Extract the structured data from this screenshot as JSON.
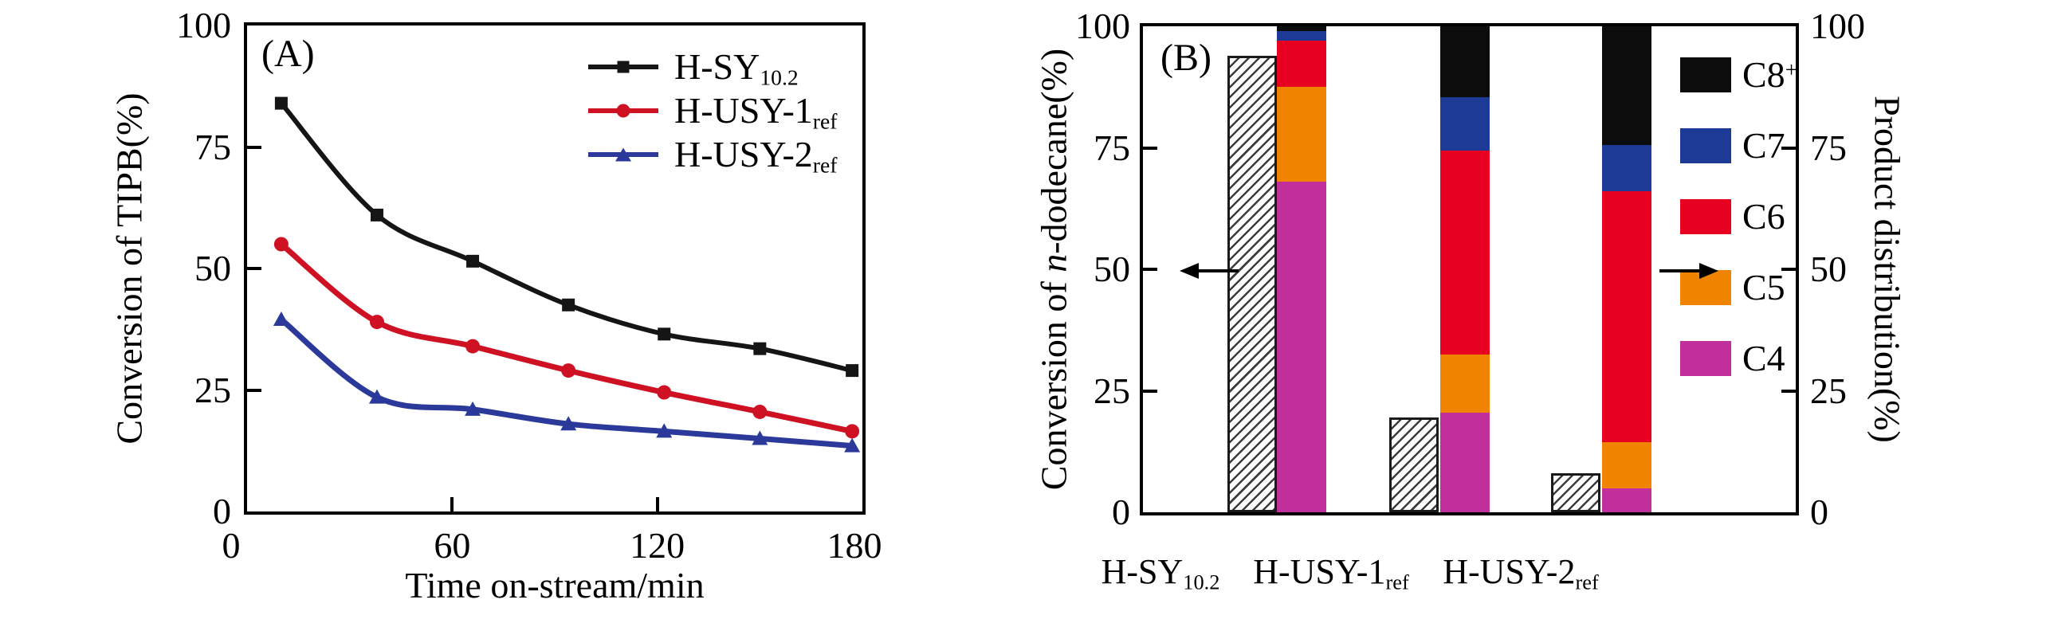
{
  "chart_data": [
    {
      "id": "A",
      "type": "line",
      "panel_tag": "(A)",
      "xlabel": "Time on-stream/min",
      "ylabel": "Conversion of TIPB(%)",
      "xlim": [
        0,
        180
      ],
      "ylim": [
        0,
        100
      ],
      "x_ticks": [
        0,
        60,
        120,
        180
      ],
      "y_ticks": [
        0,
        25,
        50,
        75,
        100
      ],
      "grid": false,
      "legend_position": "top-right-inside",
      "series": [
        {
          "name": "H-SY",
          "sub": "10.2",
          "color": "#151515",
          "marker": "square",
          "x": [
            10,
            38,
            66,
            94,
            122,
            150,
            177
          ],
          "y": [
            84,
            61,
            51.5,
            42.5,
            36.5,
            33.5,
            29
          ]
        },
        {
          "name": "H-USY-1",
          "sub": "ref",
          "color": "#cf1223",
          "marker": "circle",
          "x": [
            10,
            38,
            66,
            94,
            122,
            150,
            177
          ],
          "y": [
            55,
            39,
            34,
            29,
            24.5,
            20.5,
            16.5
          ]
        },
        {
          "name": "H-USY-2",
          "sub": "ref",
          "color": "#2b3a9a",
          "marker": "triangle",
          "x": [
            10,
            38,
            66,
            94,
            122,
            150,
            177
          ],
          "y": [
            39.5,
            23.5,
            21,
            18,
            16.5,
            15,
            13.5
          ]
        }
      ]
    },
    {
      "id": "B",
      "type": "bar",
      "panel_tag": "(B)",
      "ylabel_left_parts": [
        [
          "Conversion of ",
          false
        ],
        [
          "n",
          true
        ],
        [
          "-dodecane(%)",
          false
        ]
      ],
      "ylabel_right": "Product distribution(%)",
      "ylim": [
        0,
        100
      ],
      "y_ticks": [
        0,
        25,
        50,
        75,
        100
      ],
      "categories": [
        {
          "main": "H-SY",
          "sub": "10.2"
        },
        {
          "main": "H-USY-1",
          "sub": "ref"
        },
        {
          "main": "H-USY-2",
          "sub": "ref"
        }
      ],
      "conversion_bars": {
        "axis": "left",
        "hatch": "diagonal",
        "values": [
          94,
          19.5,
          8
        ]
      },
      "stack_series": [
        {
          "name": "C4",
          "color": "#c02f9b",
          "values": [
            68,
            20.5,
            5
          ]
        },
        {
          "name": "C5",
          "color": "#f08300",
          "values": [
            19.5,
            12,
            9.5
          ]
        },
        {
          "name": "C6",
          "color": "#e80021",
          "values": [
            9.5,
            42,
            51.5
          ]
        },
        {
          "name": "C7",
          "color": "#1c3a96",
          "values": [
            2,
            11,
            9.5
          ]
        },
        {
          "name": "C8+",
          "color": "#0c0c0c",
          "values": [
            1,
            14.5,
            24.5
          ]
        }
      ],
      "legend": [
        {
          "label": "C8",
          "sup": "+",
          "color": "#0c0c0c"
        },
        {
          "label": "C7",
          "sup": "",
          "color": "#1c3a96"
        },
        {
          "label": "C6",
          "sup": "",
          "color": "#e80021"
        },
        {
          "label": "C5",
          "sup": "",
          "color": "#f08300"
        },
        {
          "label": "C4",
          "sup": "",
          "color": "#c02f9b"
        }
      ],
      "arrows": [
        {
          "direction": "left",
          "meaning": "conversion bars read left axis"
        },
        {
          "direction": "right",
          "meaning": "stacked bars read right axis"
        }
      ]
    }
  ]
}
